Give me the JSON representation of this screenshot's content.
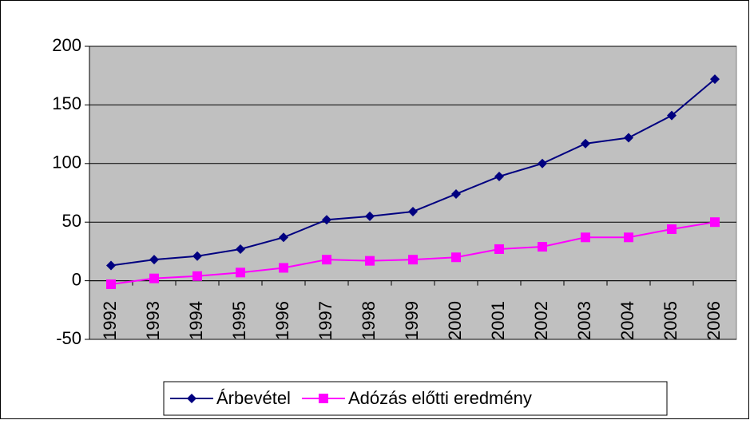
{
  "chart_data": {
    "type": "line",
    "categories": [
      "1992",
      "1993",
      "1994",
      "1995",
      "1996",
      "1997",
      "1998",
      "1999",
      "2000",
      "2001",
      "2002",
      "2003",
      "2004",
      "2005",
      "2006"
    ],
    "series": [
      {
        "name": "Árbevétel",
        "color": "#000080",
        "marker": "diamond",
        "values": [
          13,
          18,
          21,
          27,
          37,
          52,
          55,
          59,
          74,
          89,
          100,
          117,
          122,
          141,
          172
        ]
      },
      {
        "name": "Adózás előtti eredmény",
        "color": "#ff00ff",
        "marker": "square",
        "values": [
          -3,
          2,
          4,
          7,
          11,
          18,
          17,
          18,
          20,
          27,
          29,
          37,
          37,
          44,
          50
        ]
      }
    ],
    "ylim": [
      -50,
      200
    ],
    "yticks": [
      -50,
      0,
      50,
      100,
      150,
      200
    ],
    "grid": true,
    "legend": "bottom",
    "plot_background": "#c0c0c0"
  }
}
